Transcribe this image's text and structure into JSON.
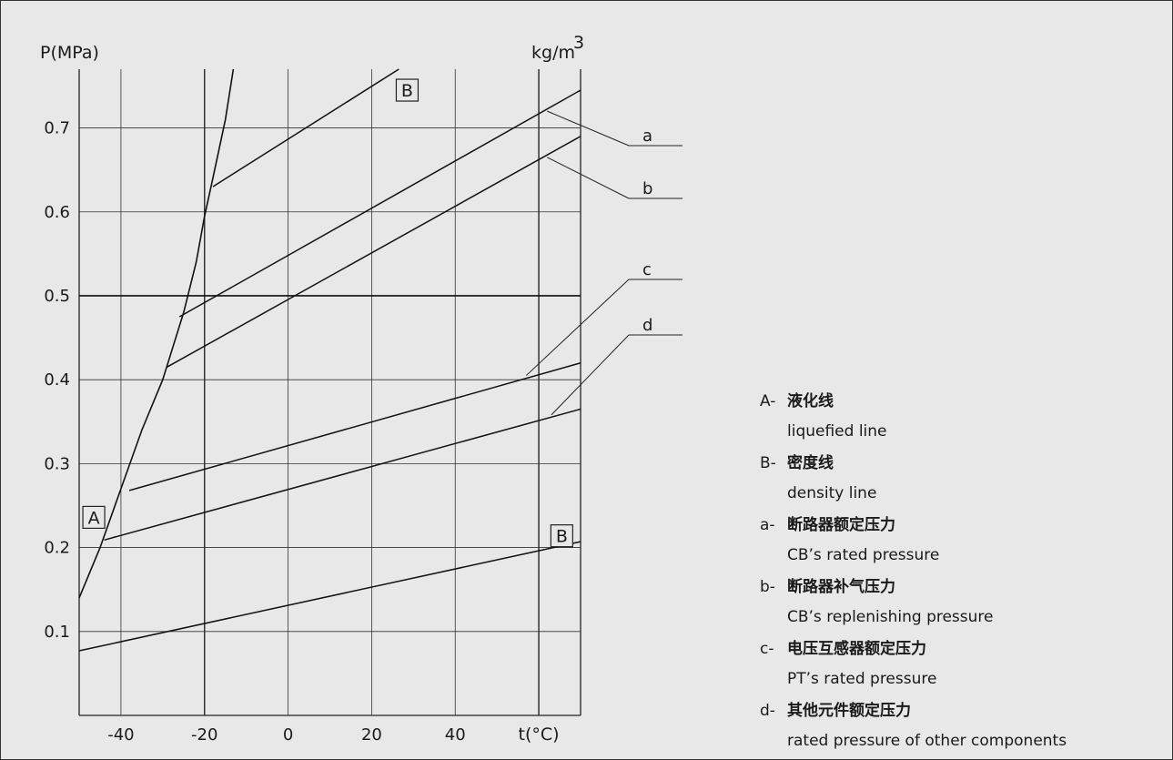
{
  "chart_data": {
    "type": "line",
    "x_unit_label": "t(°C)",
    "y_label": "P(MPa)",
    "right_unit_label": "kg/m",
    "right_unit_sup": "3",
    "xlim": [
      -50,
      70
    ],
    "ylim": [
      0.0,
      0.77
    ],
    "x_ticks": [
      -40,
      -20,
      0,
      20,
      40
    ],
    "x_tick_labels": [
      "-40",
      "-20",
      "0",
      "20",
      "40"
    ],
    "x_grid": [
      -40,
      -20,
      0,
      20,
      40,
      60
    ],
    "y_ticks": [
      0.1,
      0.2,
      0.3,
      0.4,
      0.5,
      0.6,
      0.7
    ],
    "y_tick_labels": [
      "0.1",
      "0.2",
      "0.3",
      "0.4",
      "0.5",
      "0.6",
      "0.7"
    ],
    "grid": true,
    "liquefied_curve": {
      "code": "A",
      "x": [
        -50,
        -45,
        -40,
        -35,
        -30,
        -25,
        -22,
        -20,
        -18,
        -15,
        -13.1
      ],
      "y": [
        0.14,
        0.2,
        0.27,
        0.34,
        0.4,
        0.48,
        0.54,
        0.595,
        0.64,
        0.71,
        0.77
      ]
    },
    "density_lines": [
      {
        "code": "B",
        "x": [
          -18,
          26.5
        ],
        "y": [
          0.63,
          0.77
        ]
      },
      {
        "code": "",
        "x": [
          -26,
          70
        ],
        "y": [
          0.475,
          0.745
        ]
      },
      {
        "code": "",
        "x": [
          -29,
          70
        ],
        "y": [
          0.415,
          0.69
        ]
      },
      {
        "code": "",
        "x": [
          -38,
          70
        ],
        "y": [
          0.268,
          0.42
        ]
      },
      {
        "code": "",
        "x": [
          -44,
          70
        ],
        "y": [
          0.209,
          0.365
        ]
      },
      {
        "code": "",
        "x": [
          -50,
          70
        ],
        "y": [
          0.077,
          0.207
        ]
      }
    ],
    "reference_line": {
      "y": 0.5
    },
    "box_labels": [
      {
        "text": "B",
        "x": 28.5,
        "y": 0.745
      },
      {
        "text": "A",
        "x": -46.5,
        "y": 0.236
      },
      {
        "text": "B",
        "x": 65.5,
        "y": 0.214
      }
    ],
    "callouts": [
      {
        "code": "a",
        "x": 62,
        "y": 0.72
      },
      {
        "code": "b",
        "x": 62,
        "y": 0.665
      },
      {
        "code": "c",
        "x": 57,
        "y": 0.405
      },
      {
        "code": "d",
        "x": 63,
        "y": 0.358
      }
    ]
  },
  "legend": {
    "items": [
      {
        "code": "A-",
        "zh": "液化线",
        "en": "liquefied line"
      },
      {
        "code": "B-",
        "zh": "密度线",
        "en": "density line"
      },
      {
        "code": "a-",
        "zh": "断路器额定压力",
        "en": "CB’s rated pressure"
      },
      {
        "code": "b-",
        "zh": "断路器补气压力",
        "en": "CB’s replenishing pressure"
      },
      {
        "code": "c-",
        "zh": "电压互感器额定压力",
        "en": "PT’s rated pressure"
      },
      {
        "code": "d-",
        "zh": "其他元件额定压力",
        "en": "rated pressure of other components"
      }
    ]
  }
}
